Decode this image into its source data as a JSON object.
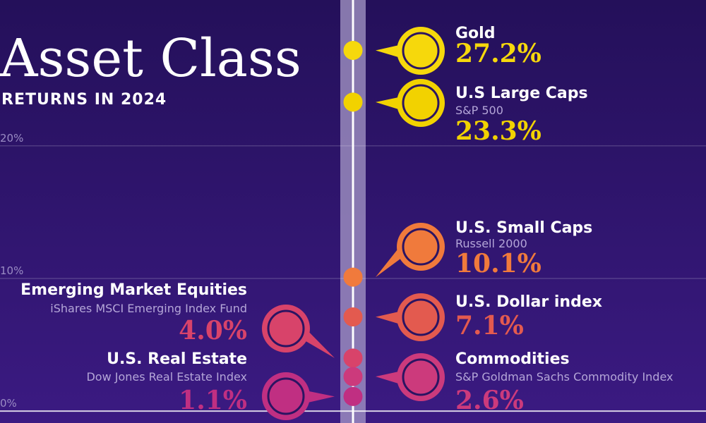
{
  "chart_data": {
    "type": "timeline",
    "title": "Asset Class",
    "subtitle": "RETURNS IN 2024",
    "ylim": [
      -0.9,
      31.0
    ],
    "yticks": [
      {
        "value": 0,
        "label": "0%"
      },
      {
        "value": 10,
        "label": "10%"
      },
      {
        "value": 20,
        "label": "20%"
      }
    ],
    "grid": true,
    "series": [
      {
        "name": "Gold",
        "color": "#f6d80c",
        "values": [
          27.2
        ],
        "value_labels": [
          "27.2%"
        ]
      },
      {
        "name": "U.S Large Caps",
        "subtitle": "S&P 500",
        "color": "#f2d200",
        "values": [
          23.3
        ],
        "value_labels": [
          "23.3%"
        ]
      },
      {
        "name": "U.S. Small Caps",
        "subtitle": "Russell 2000",
        "color": "#f07a3c",
        "values": [
          10.1
        ],
        "value_labels": [
          "10.1%"
        ]
      },
      {
        "name": "U.S. Dollar index",
        "color": "#e35a4f",
        "values": [
          7.1
        ],
        "value_labels": [
          "7.1%"
        ]
      },
      {
        "name": "Emerging Market Equities",
        "subtitle": "iShares MSCI Emerging Index Fund",
        "color": "#d8436a",
        "values": [
          4.0
        ],
        "value_labels": [
          "4.0%"
        ]
      },
      {
        "name": "Commodities",
        "subtitle": "S&P Goldman Sachs Commodity Index",
        "color": "#cc3a7c",
        "values": [
          2.6
        ],
        "value_labels": [
          "2.6%"
        ]
      },
      {
        "name": "U.S. Real Estate",
        "subtitle": "Dow Jones Real Estate Index",
        "color": "#c02f82",
        "values": [
          1.1
        ],
        "value_labels": [
          "1.1%"
        ]
      }
    ]
  }
}
